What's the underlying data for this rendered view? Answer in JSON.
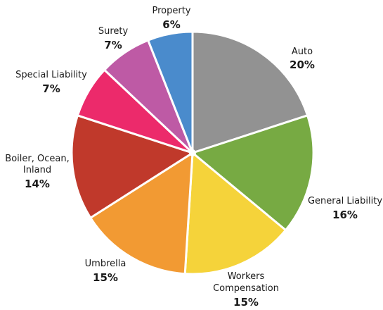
{
  "chart_data": {
    "type": "pie",
    "title": "",
    "start_angle_deg": 0,
    "direction": "clockwise",
    "slices": [
      {
        "name": "Auto",
        "value": 20,
        "label": "20%",
        "color": "#929292"
      },
      {
        "name": "General Liability",
        "value": 16,
        "label": "16%",
        "color": "#77aa43"
      },
      {
        "name": "Workers Compensation",
        "value": 15,
        "label": "15%",
        "color": "#f5d33a"
      },
      {
        "name": "Umbrella",
        "value": 15,
        "label": "15%",
        "color": "#f29a33"
      },
      {
        "name": "Boiler, Ocean, Inland",
        "value": 14,
        "label": "14%",
        "color": "#c0392b"
      },
      {
        "name": "Special Liability",
        "value": 7,
        "label": "7%",
        "color": "#ec2a6b"
      },
      {
        "name": "Surety",
        "value": 7,
        "label": "7%",
        "color": "#be5aa5"
      },
      {
        "name": "Property",
        "value": 6,
        "label": "6%",
        "color": "#4a8bcc"
      }
    ]
  }
}
